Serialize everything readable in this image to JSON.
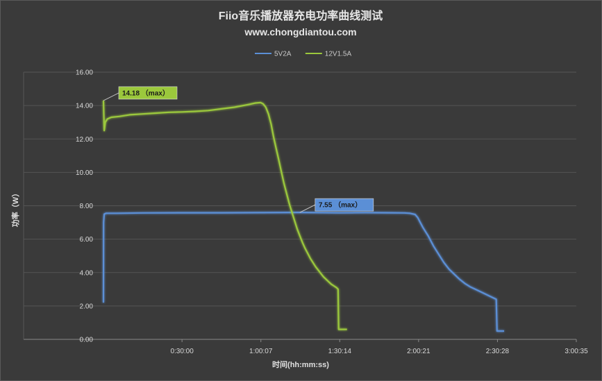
{
  "chart_data": {
    "type": "line",
    "title": "Fiio音乐播放器充电功率曲线测试",
    "subtitle": "www.chongdiantou.com",
    "xlabel": "时间(hh:mm:ss)",
    "ylabel": "功率（W）",
    "ylim": [
      0,
      16
    ],
    "xlim_minutes": [
      0,
      180.58
    ],
    "x_ticks": [
      {
        "minutes": 30.0,
        "label": "0:30:00"
      },
      {
        "minutes": 60.12,
        "label": "1:00:07"
      },
      {
        "minutes": 90.23,
        "label": "1:30:14"
      },
      {
        "minutes": 120.35,
        "label": "2:00:21"
      },
      {
        "minutes": 150.47,
        "label": "2:30:28"
      },
      {
        "minutes": 180.58,
        "label": "3:00:35"
      }
    ],
    "y_ticks": [
      "0.00",
      "2.00",
      "4.00",
      "6.00",
      "8.00",
      "10.00",
      "12.00",
      "14.00",
      "16.00"
    ],
    "grid": "y-only",
    "legend_position": "top",
    "series": [
      {
        "name": "5V2A",
        "color": "#5b8fd6",
        "x": [
          0,
          0.05,
          0.3,
          1,
          5,
          15,
          30,
          45,
          60,
          75,
          90,
          100,
          110,
          115,
          117,
          119,
          120,
          121,
          122,
          124,
          126,
          128,
          130,
          132,
          134,
          136,
          138,
          140,
          142,
          144,
          146,
          148,
          150,
          150.3,
          150.8,
          153
        ],
        "y": [
          2.2,
          7.0,
          7.5,
          7.55,
          7.55,
          7.57,
          7.58,
          7.58,
          7.59,
          7.6,
          7.58,
          7.59,
          7.58,
          7.57,
          7.55,
          7.48,
          7.3,
          7.0,
          6.7,
          6.2,
          5.6,
          5.1,
          4.6,
          4.2,
          3.9,
          3.6,
          3.35,
          3.15,
          3.0,
          2.85,
          2.7,
          2.55,
          2.4,
          0.5,
          0.5,
          0.5
        ],
        "max_label": "7.55 （max）"
      },
      {
        "name": "12V1.5A",
        "color": "#9bc83c",
        "x": [
          0,
          0.3,
          0.7,
          1.5,
          3,
          6,
          10,
          15,
          20,
          25,
          30,
          35,
          40,
          45,
          50,
          55,
          58,
          60,
          61,
          62,
          63,
          64,
          65,
          66,
          67,
          68,
          69,
          70,
          71,
          72,
          73,
          74,
          75,
          76,
          77,
          78,
          79,
          80,
          81,
          82,
          83,
          84,
          85,
          86,
          87,
          88,
          89,
          89.6,
          89.8,
          90,
          91,
          93
        ],
        "y": [
          14.3,
          12.5,
          13.0,
          13.2,
          13.3,
          13.35,
          13.45,
          13.5,
          13.55,
          13.6,
          13.62,
          13.65,
          13.7,
          13.8,
          13.9,
          14.05,
          14.15,
          14.18,
          14.1,
          13.9,
          13.5,
          12.9,
          12.1,
          11.4,
          10.7,
          10.0,
          9.3,
          8.7,
          8.1,
          7.6,
          7.1,
          6.6,
          6.2,
          5.8,
          5.45,
          5.15,
          4.85,
          4.6,
          4.35,
          4.15,
          3.95,
          3.75,
          3.6,
          3.45,
          3.3,
          3.2,
          3.1,
          3.0,
          0.6,
          0.6,
          0.6,
          0.6
        ],
        "max_label": "14.18 （max）"
      }
    ]
  }
}
